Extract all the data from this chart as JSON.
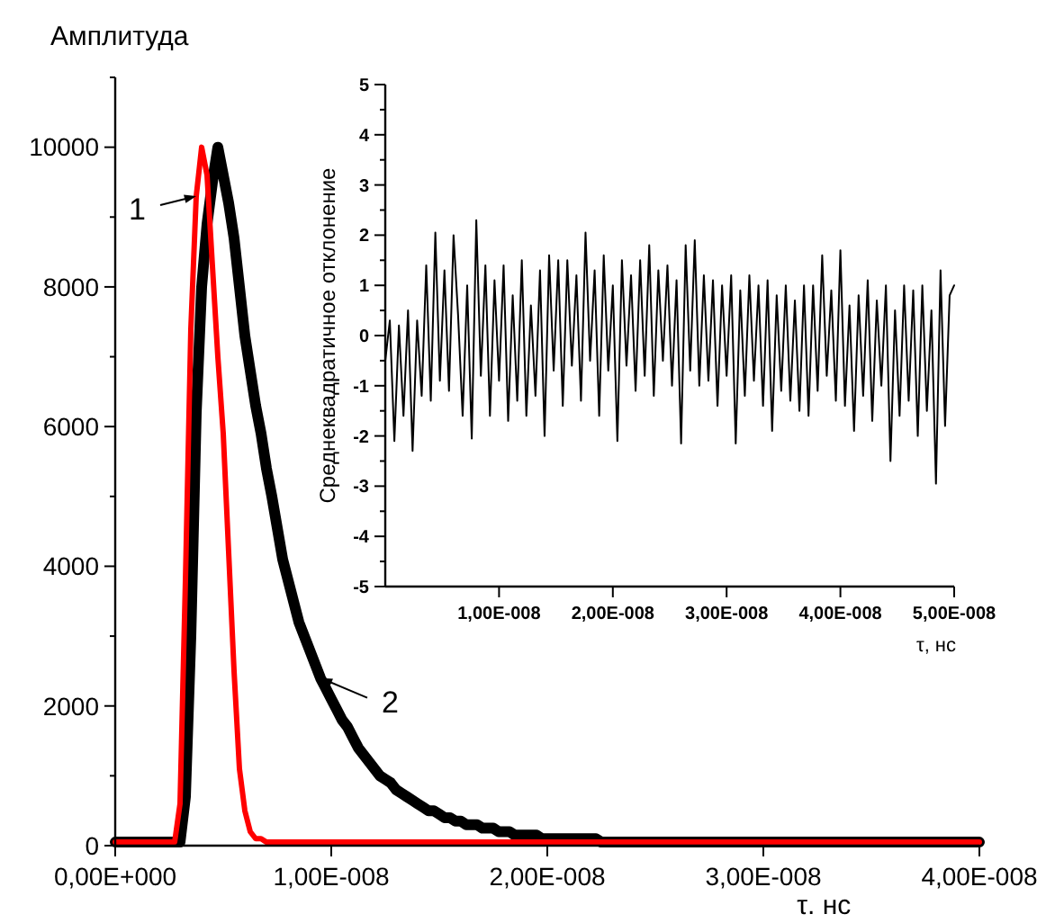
{
  "chart_data": [
    {
      "type": "line",
      "xlabel": "τ. нс",
      "ylabel": "Амплитуда",
      "ylim": [
        0,
        11000
      ],
      "categories": [
        "0,00E+000",
        null,
        null,
        null,
        null,
        null,
        null,
        null,
        null,
        null,
        null,
        null,
        null,
        null,
        null,
        null,
        null,
        null,
        null,
        null,
        null,
        null,
        null,
        null,
        null,
        null,
        null,
        null,
        null,
        null,
        null,
        null,
        null,
        null,
        null,
        null,
        null,
        null,
        null,
        null,
        "1,00E-008",
        null,
        null,
        null,
        null,
        null,
        null,
        null,
        null,
        null,
        null,
        null,
        null,
        null,
        null,
        null,
        null,
        null,
        null,
        null,
        null,
        null,
        null,
        null,
        null,
        null,
        null,
        null,
        null,
        null,
        null,
        null,
        null,
        null,
        null,
        null,
        null,
        null,
        null,
        null,
        "2,00E-008",
        null,
        null,
        null,
        null,
        null,
        null,
        null,
        null,
        null,
        null,
        null,
        null,
        null,
        null,
        null,
        null,
        null,
        null,
        null,
        null,
        null,
        null,
        null,
        null,
        null,
        null,
        null,
        null,
        null,
        null,
        null,
        null,
        null,
        null,
        null,
        null,
        null,
        null,
        null,
        "3,00E-008",
        null,
        null,
        null,
        null,
        null,
        null,
        null,
        null,
        null,
        null,
        null,
        null,
        null,
        null,
        null,
        null,
        null,
        null,
        null,
        null,
        null,
        null,
        null,
        null,
        null,
        null,
        null,
        null,
        null,
        null,
        null,
        null,
        null,
        null,
        null,
        null,
        null,
        null,
        null,
        "4,00E-008"
      ],
      "yticks": [
        0,
        {
          "value": 1000,
          "label": null
        },
        2000,
        {
          "value": 3000,
          "label": null
        },
        4000,
        {
          "value": 5000,
          "label": null
        },
        6000,
        {
          "value": 7000,
          "label": null
        },
        8000,
        {
          "value": 9000,
          "label": null
        },
        10000,
        {
          "value": 11000,
          "label": null
        }
      ],
      "series": [
        {
          "name": "1",
          "color": "#ff0000",
          "values": [
            50,
            50,
            50,
            50,
            50,
            50,
            50,
            50,
            50,
            50,
            50,
            50,
            600,
            3800,
            7400,
            9300,
            10000,
            9600,
            8300,
            7000,
            5900,
            4200,
            2500,
            1100,
            500,
            200,
            100,
            100,
            50,
            50,
            50,
            50,
            50,
            50,
            50,
            50,
            50,
            50,
            50,
            50,
            50,
            50,
            50,
            50,
            50,
            50,
            50,
            50,
            50,
            50,
            50,
            50,
            50,
            50,
            50,
            50,
            50,
            50,
            50,
            50,
            50,
            50,
            50,
            50,
            50,
            50,
            50,
            50,
            50,
            50,
            50,
            50,
            50,
            50,
            50,
            50,
            50,
            50,
            50,
            50,
            50,
            50,
            50,
            50,
            50,
            50,
            50,
            50,
            50,
            50,
            50,
            50,
            50,
            50,
            50,
            50,
            50,
            50,
            50,
            50,
            50,
            50,
            50,
            50,
            50,
            50,
            50,
            50,
            50,
            50,
            50,
            50,
            50,
            50,
            50,
            50,
            50,
            50,
            50,
            50,
            50,
            50,
            50,
            50,
            50,
            50,
            50,
            50,
            50,
            50,
            50,
            50,
            50,
            50,
            50,
            50,
            50,
            50,
            50,
            50,
            50,
            50,
            50,
            50,
            50,
            50,
            50,
            50,
            50,
            50,
            50,
            50,
            50,
            50,
            50,
            50,
            50,
            50,
            50,
            50,
            50
          ]
        },
        {
          "name": "2",
          "color": "#000000",
          "values": [
            50,
            50,
            50,
            50,
            50,
            50,
            50,
            50,
            50,
            50,
            50,
            50,
            50,
            700,
            3000,
            6200,
            8000,
            8900,
            9500,
            10000,
            9600,
            9200,
            8700,
            8000,
            7300,
            6800,
            6300,
            5900,
            5400,
            5000,
            4550,
            4100,
            3800,
            3500,
            3200,
            3000,
            2800,
            2600,
            2400,
            2250,
            2100,
            1950,
            1800,
            1700,
            1550,
            1400,
            1300,
            1200,
            1100,
            1000,
            950,
            900,
            800,
            750,
            700,
            650,
            600,
            550,
            500,
            500,
            450,
            400,
            400,
            350,
            350,
            300,
            300,
            300,
            250,
            250,
            250,
            200,
            200,
            200,
            150,
            150,
            150,
            150,
            150,
            100,
            100,
            100,
            100,
            100,
            100,
            100,
            100,
            100,
            100,
            100,
            50,
            50,
            50,
            50,
            50,
            50,
            50,
            50,
            50,
            50,
            50,
            50,
            50,
            50,
            50,
            50,
            50,
            50,
            50,
            50,
            50,
            50,
            50,
            50,
            50,
            50,
            50,
            50,
            50,
            50,
            50,
            50,
            50,
            50,
            50,
            50,
            50,
            50,
            50,
            50,
            50,
            50,
            50,
            50,
            50,
            50,
            50,
            50,
            50,
            50,
            50,
            50,
            50,
            50,
            50,
            50,
            50,
            50,
            50,
            50,
            50,
            50,
            50,
            50,
            50,
            50,
            50,
            50,
            50,
            50,
            50
          ]
        }
      ]
    },
    {
      "type": "line",
      "xlabel": "τ, нс",
      "ylabel": "Среднеквадратичное отклонение",
      "ylim": [
        -5,
        5
      ],
      "categories": [
        null,
        null,
        null,
        null,
        null,
        null,
        null,
        null,
        null,
        null,
        null,
        null,
        null,
        null,
        null,
        null,
        null,
        null,
        null,
        null,
        null,
        null,
        null,
        null,
        null,
        "1,00E-008",
        null,
        null,
        null,
        null,
        null,
        null,
        null,
        null,
        null,
        null,
        null,
        null,
        null,
        null,
        null,
        null,
        null,
        null,
        null,
        null,
        null,
        null,
        null,
        null,
        "2,00E-008",
        null,
        null,
        null,
        null,
        null,
        null,
        null,
        null,
        null,
        null,
        null,
        null,
        null,
        null,
        null,
        null,
        null,
        null,
        null,
        null,
        null,
        null,
        null,
        null,
        "3,00E-008",
        null,
        null,
        null,
        null,
        null,
        null,
        null,
        null,
        null,
        null,
        null,
        null,
        null,
        null,
        null,
        null,
        null,
        null,
        null,
        null,
        null,
        null,
        null,
        null,
        "4,00E-008",
        null,
        null,
        null,
        null,
        null,
        null,
        null,
        null,
        null,
        null,
        null,
        null,
        null,
        null,
        null,
        null,
        null,
        null,
        null,
        null,
        null,
        null,
        null,
        null,
        "5,00E-008"
      ],
      "yticks": [
        -5,
        {
          "value": -4.5,
          "label": null
        },
        -4,
        {
          "value": -3.5,
          "label": null
        },
        -3,
        {
          "value": -2.5,
          "label": null
        },
        -2,
        {
          "value": -1.5,
          "label": null
        },
        -1,
        {
          "value": -0.5,
          "label": null
        },
        0,
        {
          "value": 0.5,
          "label": null
        },
        1,
        {
          "value": 1.5,
          "label": null
        },
        2,
        {
          "value": 2.5,
          "label": null
        },
        3,
        {
          "value": 3.5,
          "label": null
        },
        4,
        {
          "value": 4.5,
          "label": null
        },
        5
      ],
      "series": [
        {
          "color": "#000000",
          "values": [
            -0.5,
            0.3,
            -2.1,
            0.2,
            -1.6,
            0.5,
            -2.3,
            0.3,
            -1.2,
            1.4,
            -1.3,
            2.05,
            -0.9,
            1.3,
            -1.1,
            2.0,
            0.4,
            -1.6,
            1.0,
            -2.05,
            2.3,
            -0.8,
            1.4,
            -1.6,
            1.1,
            -0.9,
            1.4,
            -1.7,
            0.8,
            -1.3,
            1.5,
            -1.6,
            0.6,
            -1.2,
            1.3,
            -2.0,
            1.6,
            -0.7,
            1.5,
            -1.4,
            1.5,
            -0.6,
            1.2,
            -1.3,
            2.05,
            -0.5,
            1.3,
            -1.6,
            1.6,
            -0.7,
            1.0,
            -2.1,
            1.5,
            -0.6,
            1.2,
            -1.1,
            1.5,
            -0.8,
            1.8,
            -1.2,
            1.3,
            -0.5,
            1.4,
            -1.0,
            1.1,
            -2.15,
            1.8,
            -0.7,
            1.9,
            -1.0,
            1.2,
            -0.9,
            1.1,
            -1.4,
            1.0,
            -0.8,
            1.2,
            -2.15,
            0.9,
            -1.2,
            1.2,
            -0.9,
            1.0,
            -1.4,
            1.1,
            -1.9,
            0.8,
            -1.1,
            1.0,
            -1.3,
            0.7,
            -1.5,
            1.0,
            -1.6,
            1.0,
            -1.1,
            1.6,
            -0.8,
            0.9,
            -1.3,
            1.7,
            -1.4,
            0.6,
            -1.9,
            0.8,
            -1.2,
            1.1,
            -1.7,
            0.7,
            -1.0,
            1.0,
            -2.5,
            0.5,
            -1.6,
            1.0,
            -1.3,
            0.9,
            -2.0,
            1.0,
            -1.5,
            0.5,
            -2.95,
            1.3,
            -1.8,
            0.8,
            1.0
          ]
        }
      ]
    }
  ]
}
